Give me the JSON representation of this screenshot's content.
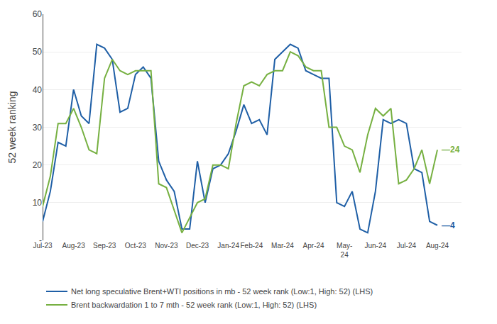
{
  "chart_data": {
    "type": "line",
    "ylabel": "52 week ranking",
    "categories": [
      "Jul-23",
      null,
      null,
      null,
      "Aug-23",
      null,
      null,
      null,
      "Sep-23",
      null,
      null,
      null,
      "Oct-23",
      null,
      null,
      null,
      "Nov-23",
      null,
      null,
      null,
      "Dec-23",
      null,
      null,
      null,
      "Jan-24",
      null,
      null,
      "Feb-24",
      null,
      null,
      null,
      "Mar-24",
      null,
      null,
      null,
      "Apr-24",
      null,
      null,
      null,
      "May-\n24",
      null,
      null,
      null,
      "Jun-24",
      null,
      null,
      null,
      "Jul-24",
      null,
      null,
      null,
      "Aug-24"
    ],
    "series": [
      {
        "name": "Net long speculative Brent+WTI positions in mb - 52 week rank (Low:1, High: 52) (LHS)",
        "color": "#1F5FA6",
        "values": [
          5,
          13,
          26,
          25,
          40,
          33,
          31,
          52,
          51,
          48,
          34,
          35,
          44,
          46,
          43,
          21,
          16,
          13,
          3,
          3,
          21,
          10,
          19,
          20,
          23,
          29,
          36,
          31,
          32,
          28,
          48,
          50,
          52,
          51,
          45,
          44,
          43,
          43,
          10,
          9,
          13,
          3,
          2,
          13,
          32,
          31,
          32,
          31,
          19,
          18,
          5,
          4
        ]
      },
      {
        "name": "Brent backwardation 1 to 7 mth - 52 week rank (Low:1, High: 52) (LHS)",
        "color": "#76B041",
        "values": [
          9,
          17,
          31,
          31,
          35,
          30,
          24,
          23,
          43,
          48,
          45,
          44,
          45,
          45,
          45,
          15,
          14,
          8,
          2,
          6,
          10,
          11,
          20,
          20,
          19,
          31,
          41,
          42,
          41,
          44,
          45,
          45,
          50,
          49,
          46,
          45,
          45,
          30,
          30,
          25,
          24,
          18,
          28,
          35,
          33,
          35,
          15,
          16,
          19,
          24,
          15,
          24
        ]
      }
    ],
    "annotations": [
      {
        "text": "—24",
        "y": 24,
        "color": "#76B041"
      },
      {
        "text": "—4",
        "y": 4,
        "color": "#1F5FA6"
      }
    ],
    "ylim": [
      0,
      60
    ],
    "yticks": [
      {
        "value": 0,
        "label": "-"
      },
      10,
      20,
      30,
      40,
      50,
      60
    ],
    "grid": true,
    "legend": "bottom"
  }
}
